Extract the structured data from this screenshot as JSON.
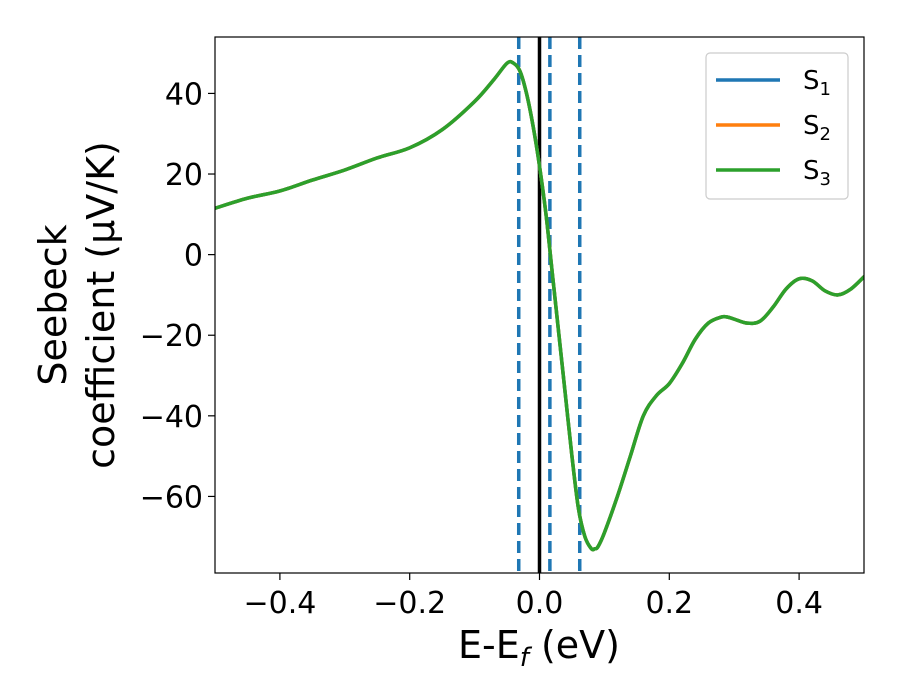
{
  "chart_data": {
    "type": "line",
    "title": "",
    "xlabel": {
      "base": "E-E",
      "sub": "f",
      "unit": " (eV)"
    },
    "ylabel": {
      "line1": "Seebeck",
      "line2": "coefficient  (μV/K)"
    },
    "xlim": [
      -0.5,
      0.5
    ],
    "ylim": [
      -79,
      54
    ],
    "xticks": [
      -0.4,
      -0.2,
      0.0,
      0.2,
      0.4
    ],
    "xtick_labels": [
      "−0.4",
      "−0.2",
      "0.0",
      "0.2",
      "0.4"
    ],
    "yticks": [
      -60,
      -40,
      -20,
      0,
      20,
      40
    ],
    "ytick_labels": [
      "−60",
      "−40",
      "−20",
      "0",
      "20",
      "40"
    ],
    "grid": false,
    "legend_position": "top-right",
    "x": [
      -0.5,
      -0.45,
      -0.4,
      -0.35,
      -0.3,
      -0.25,
      -0.2,
      -0.15,
      -0.1,
      -0.07,
      -0.05,
      -0.04,
      -0.03,
      -0.02,
      -0.01,
      0.0,
      0.01,
      0.02,
      0.03,
      0.04,
      0.05,
      0.06,
      0.07,
      0.08,
      0.085,
      0.09,
      0.1,
      0.12,
      0.14,
      0.16,
      0.18,
      0.2,
      0.22,
      0.24,
      0.26,
      0.28,
      0.29,
      0.3,
      0.32,
      0.34,
      0.36,
      0.38,
      0.4,
      0.42,
      0.44,
      0.46,
      0.48,
      0.5
    ],
    "series": [
      {
        "name_base": "S",
        "name_sub": "1",
        "color": "#1f77b4",
        "y": [
          11.5,
          14.0,
          15.8,
          18.5,
          21.0,
          24.0,
          26.5,
          31.0,
          38.0,
          43.5,
          47.5,
          47.5,
          45.5,
          40.0,
          32.0,
          22.0,
          10.0,
          -5.0,
          -20.0,
          -35.0,
          -50.0,
          -63.0,
          -70.0,
          -73.0,
          -73.0,
          -72.5,
          -69.0,
          -60.0,
          -50.0,
          -40.0,
          -35.0,
          -32.0,
          -27.0,
          -21.0,
          -17.0,
          -15.5,
          -15.5,
          -16.0,
          -17.0,
          -16.5,
          -13.0,
          -8.5,
          -6.0,
          -6.5,
          -9.0,
          -10.0,
          -8.5,
          -5.5
        ]
      },
      {
        "name_base": "S",
        "name_sub": "2",
        "color": "#ff7f0e",
        "y": [
          11.5,
          14.0,
          15.8,
          18.5,
          21.0,
          24.0,
          26.5,
          31.0,
          38.0,
          43.5,
          47.5,
          47.5,
          45.5,
          40.0,
          32.0,
          22.0,
          10.0,
          -5.0,
          -20.0,
          -35.0,
          -50.0,
          -63.0,
          -70.0,
          -73.0,
          -73.0,
          -72.5,
          -69.0,
          -60.0,
          -50.0,
          -40.0,
          -35.0,
          -32.0,
          -27.0,
          -21.0,
          -17.0,
          -15.5,
          -15.5,
          -16.0,
          -17.0,
          -16.5,
          -13.0,
          -8.5,
          -6.0,
          -6.5,
          -9.0,
          -10.0,
          -8.5,
          -5.5
        ]
      },
      {
        "name_base": "S",
        "name_sub": "3",
        "color": "#2ca02c",
        "y": [
          11.5,
          14.0,
          15.8,
          18.5,
          21.0,
          24.0,
          26.5,
          31.0,
          38.0,
          43.5,
          47.5,
          47.5,
          45.5,
          40.0,
          32.0,
          22.0,
          10.0,
          -5.0,
          -20.0,
          -35.0,
          -50.0,
          -63.0,
          -70.0,
          -73.0,
          -73.0,
          -72.5,
          -69.0,
          -60.0,
          -50.0,
          -40.0,
          -35.0,
          -32.0,
          -27.0,
          -21.0,
          -17.0,
          -15.5,
          -15.5,
          -16.0,
          -17.0,
          -16.5,
          -13.0,
          -8.5,
          -6.0,
          -6.5,
          -9.0,
          -10.0,
          -8.5,
          -5.5
        ]
      }
    ],
    "vlines": [
      {
        "x": -0.032,
        "style": "dashed",
        "color": "#1f77b4"
      },
      {
        "x": 0.0,
        "style": "solid",
        "color": "#000000"
      },
      {
        "x": 0.016,
        "style": "dashed",
        "color": "#1f77b4"
      },
      {
        "x": 0.062,
        "style": "dashed",
        "color": "#1f77b4"
      }
    ]
  }
}
